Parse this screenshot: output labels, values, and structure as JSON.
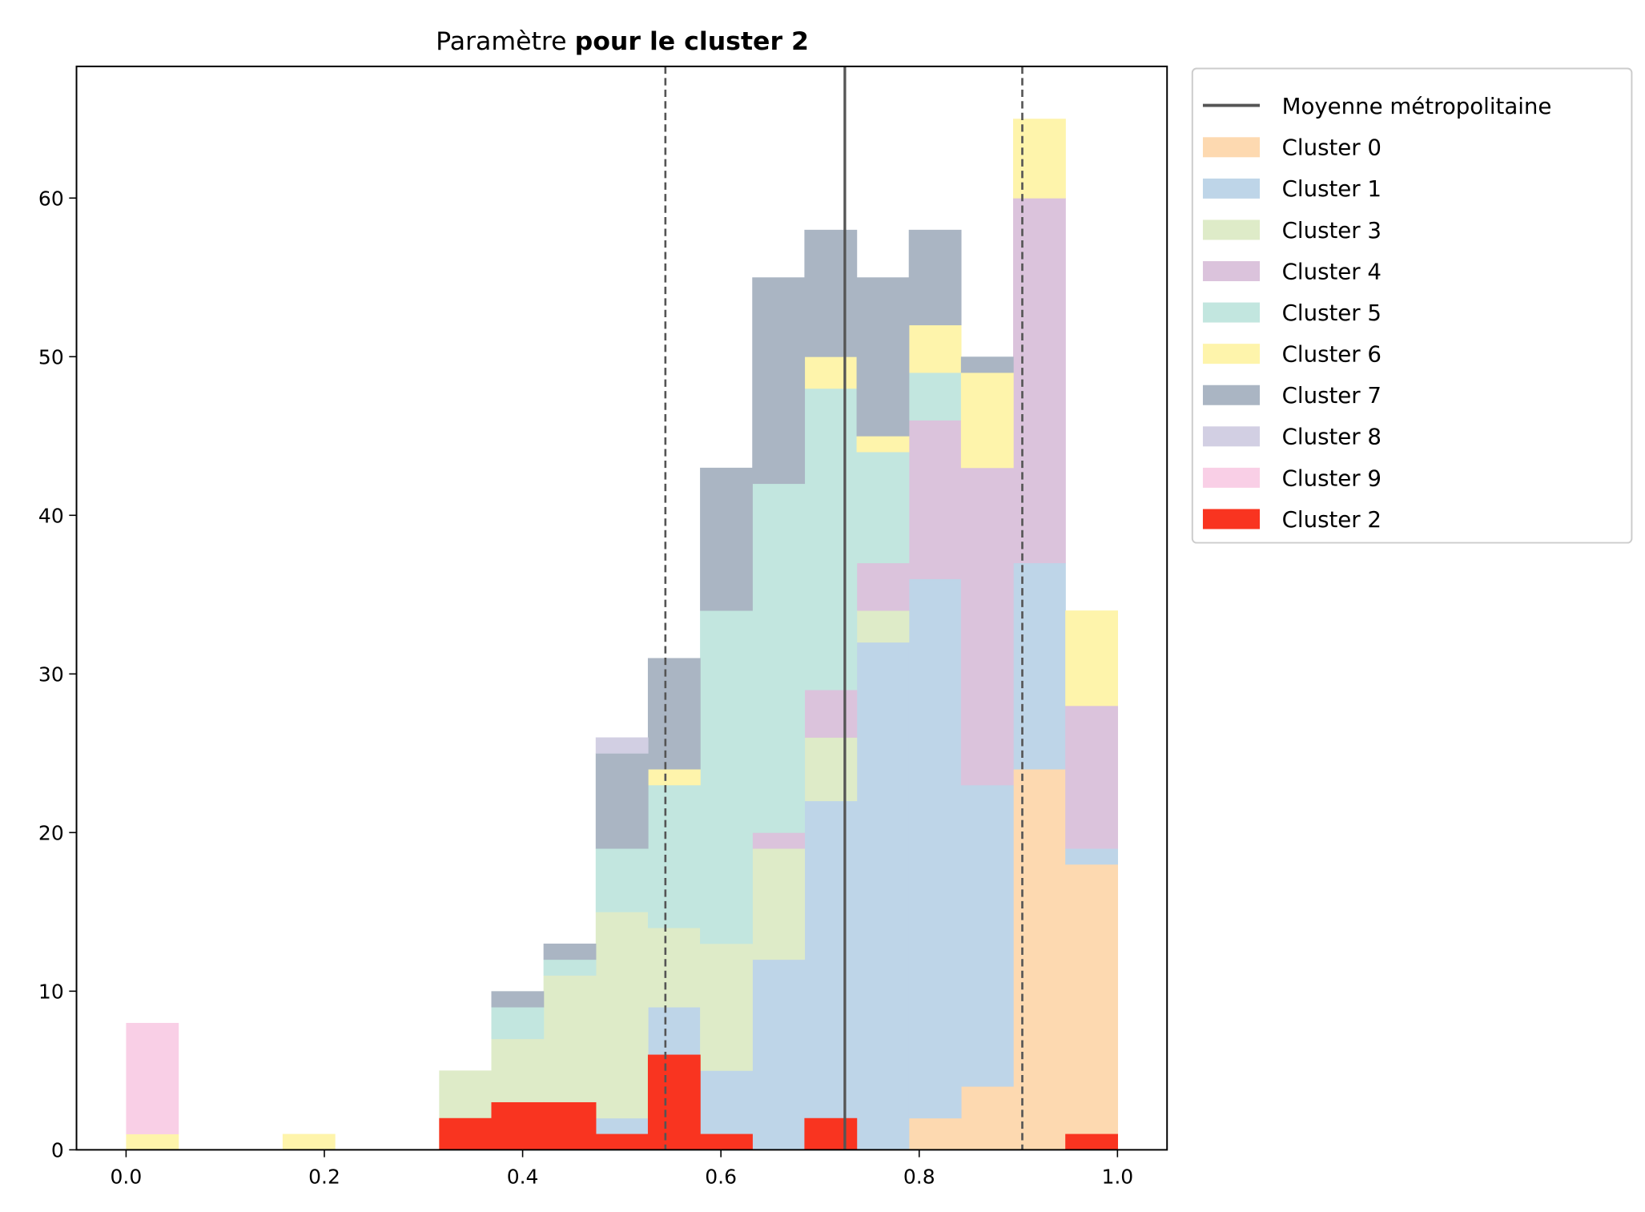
{
  "chart_data": {
    "type": "bar",
    "stacked": true,
    "title_prefix": "Paramètre",
    "title_bold": "pour le cluster 2",
    "xlabel": "",
    "ylabel": "",
    "xlim": [
      -0.05,
      1.05
    ],
    "ylim": [
      0,
      68.3
    ],
    "bins": 19,
    "bin_range": [
      0,
      1
    ],
    "xticks": [
      "0.0",
      "0.2",
      "0.4",
      "0.6",
      "0.8",
      "1.0"
    ],
    "xtick_values": [
      0,
      0.2,
      0.4,
      0.6,
      0.8,
      1.0
    ],
    "yticks": [
      "0",
      "10",
      "20",
      "30",
      "40",
      "50",
      "60"
    ],
    "ytick_values": [
      0,
      10,
      20,
      30,
      40,
      50,
      60
    ],
    "legend_placement": "outside-top-right",
    "mean_line": {
      "label": "Moyenne métropolitaine",
      "x": 0.725,
      "color": "#555555"
    },
    "dashed_lines": [
      0.544,
      0.904
    ],
    "series": [
      {
        "name": "Cluster 0",
        "color": "#fdd9b0",
        "values": [
          0,
          0,
          0,
          0,
          0,
          0,
          0,
          0,
          0,
          0,
          0,
          0,
          0,
          0,
          0,
          2,
          4,
          24,
          18
        ]
      },
      {
        "name": "Cluster 1",
        "color": "#bed5e8",
        "values": [
          0,
          0,
          0,
          0,
          0,
          0,
          0,
          0,
          0,
          2,
          9,
          5,
          12,
          22,
          32,
          34,
          19,
          13,
          1
        ]
      },
      {
        "name": "Cluster 3",
        "color": "#deebc8",
        "values": [
          0,
          0,
          0,
          0,
          0,
          0,
          5,
          7,
          11,
          13,
          5,
          8,
          7,
          4,
          2,
          0,
          0,
          0,
          0
        ]
      },
      {
        "name": "Cluster 4",
        "color": "#dbc3dc",
        "values": [
          0,
          0,
          0,
          0,
          0,
          0,
          0,
          0,
          0,
          0,
          0,
          0,
          1,
          3,
          3,
          10,
          20,
          23,
          9
        ]
      },
      {
        "name": "Cluster 5",
        "color": "#c2e6df",
        "values": [
          0,
          0,
          0,
          0,
          0,
          0,
          0,
          2,
          1,
          4,
          9,
          21,
          22,
          19,
          7,
          3,
          0,
          0,
          0
        ]
      },
      {
        "name": "Cluster 6",
        "color": "#fef4ab",
        "values": [
          1,
          0,
          0,
          1,
          0,
          0,
          0,
          0,
          0,
          0,
          1,
          0,
          0,
          2,
          1,
          3,
          6,
          5,
          6
        ]
      },
      {
        "name": "Cluster 7",
        "color": "#aab5c3",
        "values": [
          0,
          0,
          0,
          0,
          0,
          0,
          0,
          1,
          1,
          6,
          7,
          9,
          13,
          8,
          10,
          6,
          1,
          0,
          0
        ]
      },
      {
        "name": "Cluster 8",
        "color": "#d2cfe3",
        "values": [
          0,
          0,
          0,
          0,
          0,
          0,
          0,
          0,
          0,
          1,
          0,
          0,
          0,
          0,
          0,
          0,
          0,
          0,
          0
        ]
      },
      {
        "name": "Cluster 9",
        "color": "#f9cfe6",
        "values": [
          7,
          0,
          0,
          0,
          0,
          0,
          0,
          0,
          0,
          0,
          0,
          0,
          0,
          0,
          0,
          0,
          0,
          0,
          0
        ]
      }
    ],
    "highlight": {
      "name": "Cluster 2",
      "color": "#f93420",
      "values": [
        0,
        0,
        0,
        0,
        0,
        0,
        2,
        3,
        3,
        1,
        6,
        1,
        0,
        2,
        0,
        0,
        0,
        0,
        1
      ]
    }
  }
}
